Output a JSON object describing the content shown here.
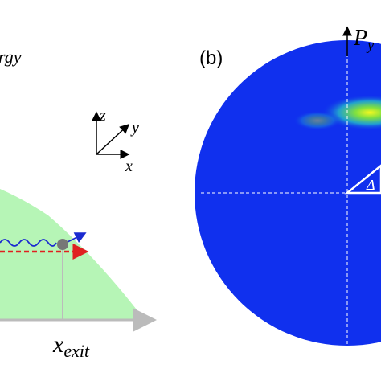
{
  "left_panel": {
    "energy_label": "rgy",
    "axes": {
      "z": "z",
      "y": "y",
      "x": "x"
    },
    "exit_label": {
      "main": "x",
      "subscript": "exit"
    }
  },
  "right_panel": {
    "panel_label": "(b)",
    "axis_label": {
      "main": "P",
      "subscript": "y"
    },
    "triangle_label": "Δ"
  }
}
